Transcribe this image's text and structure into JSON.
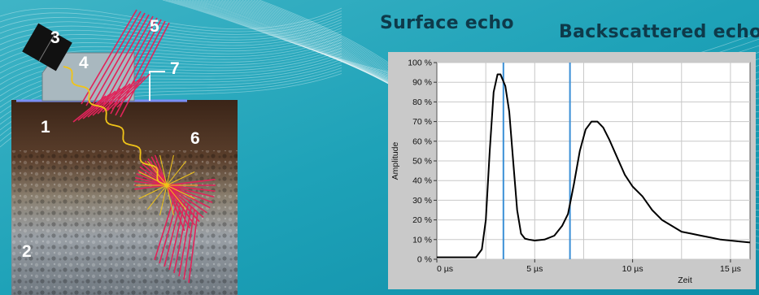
{
  "labels": {
    "n1": "1",
    "n2": "2",
    "n3": "3",
    "n4": "4",
    "n5": "5",
    "n6": "6",
    "n7": "7"
  },
  "titles": {
    "surface_echo": "Surface echo",
    "backscattered_echo": "Backscattered echo"
  },
  "colors": {
    "background": "#1ba0b6",
    "ray": "#e0245a",
    "wave": "#f0c419",
    "title": "#0e3a4a",
    "marker_line": "#3a8fd6"
  },
  "chart_data": {
    "type": "line",
    "xlabel": "Zeit",
    "ylabel": "Amplitude",
    "xlim": [
      0,
      16
    ],
    "ylim": [
      0,
      100
    ],
    "x_ticks": [
      "0 µs",
      "5 µs",
      "10 µs",
      "15 µs"
    ],
    "x_tick_values": [
      0,
      5,
      10,
      15
    ],
    "y_ticks": [
      "0 %",
      "10 %",
      "20 %",
      "30 %",
      "40 %",
      "50 %",
      "60 %",
      "70 %",
      "80 %",
      "90 %",
      "100 %"
    ],
    "y_tick_values": [
      0,
      10,
      20,
      30,
      40,
      50,
      60,
      70,
      80,
      90,
      100
    ],
    "grid": true,
    "markers": [
      3.4,
      6.8
    ],
    "series": [
      {
        "x": [
          0,
          2.0,
          2.3,
          2.5,
          2.7,
          2.9,
          3.1,
          3.25,
          3.5,
          3.7,
          3.9,
          4.1,
          4.3,
          4.5,
          4.7,
          5.0,
          5.5,
          6.0,
          6.4,
          6.7,
          7.0,
          7.3,
          7.6,
          7.9,
          8.2,
          8.5,
          8.8,
          9.2,
          9.6,
          10.0,
          10.5,
          11.0,
          11.5,
          12.0,
          12.5,
          13.0,
          13.5,
          14.0,
          14.5,
          15.0,
          15.5,
          16.0
        ],
        "y": [
          1,
          1,
          5,
          20,
          55,
          85,
          94,
          94,
          88,
          75,
          50,
          25,
          13,
          10.5,
          10,
          9.5,
          10,
          12,
          17,
          23,
          38,
          55,
          66,
          70,
          70,
          67,
          61,
          52,
          43,
          37,
          32,
          25,
          20,
          17,
          14,
          13,
          12,
          11,
          10,
          9.5,
          9,
          8.5
        ]
      }
    ]
  }
}
